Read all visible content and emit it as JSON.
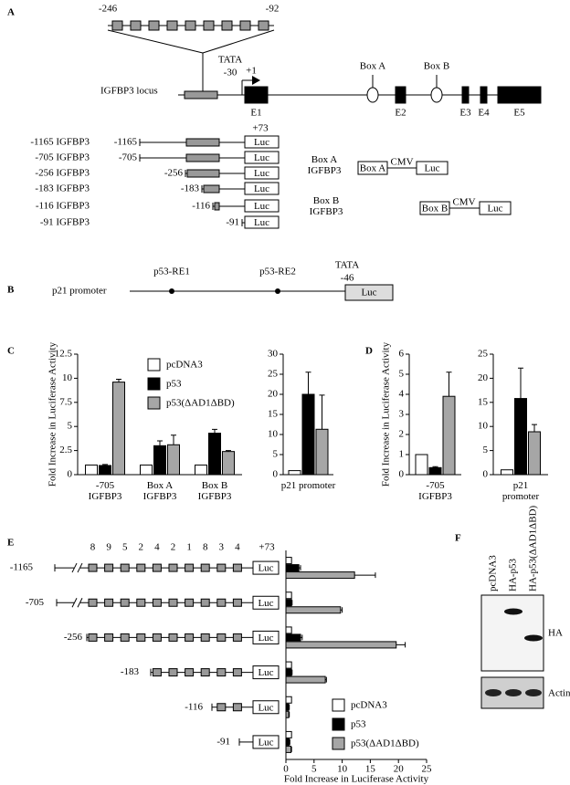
{
  "panel_labels": [
    "A",
    "B",
    "C",
    "D",
    "E",
    "F"
  ],
  "luc": "Luc",
  "igfbp3_diagram": {
    "inset_start": "-246",
    "inset_end": "-92",
    "tata": "TATA",
    "tata_position": "-30",
    "tss": "+1",
    "locus_label": "IGFBP3 locus",
    "box_a": "Box A",
    "box_b": "Box B",
    "exons": [
      "E1",
      "E2",
      "E3",
      "E4",
      "E5"
    ],
    "end_position": "+73",
    "constructs": [
      {
        "name": "-1165 IGFBP3",
        "start": "-1165"
      },
      {
        "name": "-705 IGFBP3",
        "start": "-705"
      },
      {
        "name": "-256 IGFBP3",
        "start": "-256"
      },
      {
        "name": "-183 IGFBP3",
        "start": "-183"
      },
      {
        "name": "-116 IGFBP3",
        "start": "-116"
      },
      {
        "name": "-91 IGFBP3",
        "start": "-91"
      }
    ],
    "box_constructs": [
      {
        "name": "Box A\nIGFBP3",
        "element": "Box A",
        "promoter": "CMV"
      },
      {
        "name": "Box B\nIGFBP3",
        "element": "Box B",
        "promoter": "CMV"
      }
    ]
  },
  "p21_diagram": {
    "label": "p21 promoter",
    "elements": [
      "p53-RE1",
      "p53-RE2"
    ],
    "tata": "TATA",
    "tata_position": "-46"
  },
  "e_diagram": {
    "site_numbers": [
      "8",
      "9",
      "5",
      "2",
      "4",
      "2",
      "1",
      "8",
      "3",
      "4"
    ]
  },
  "chart_data": [
    {
      "type": "bar",
      "ylabel": "Fold Increase in Luciferase Activity",
      "categories": [
        "-705\nIGFBP3",
        "Box A\nIGFBP3",
        "Box B\nIGFBP3"
      ],
      "series": [
        {
          "name": "pcDNA3",
          "color": "#ffffff",
          "values": [
            1,
            1,
            1
          ]
        },
        {
          "name": "p53",
          "color": "#000000",
          "values": [
            0.95,
            3,
            4.3
          ],
          "errors": [
            0.1,
            0.5,
            0.4
          ]
        },
        {
          "name": "p53(ΔAD1ΔBD)",
          "color": "#a6a6a6",
          "values": [
            9.6,
            3.1,
            2.4
          ],
          "errors": [
            0.3,
            1,
            0.1
          ]
        }
      ],
      "ylim": [
        0,
        12.5
      ],
      "yticks": [
        0,
        2.5,
        5,
        7.5,
        10,
        12.5
      ],
      "legend": "upper right"
    },
    {
      "type": "bar",
      "categories": [
        "p21 promoter"
      ],
      "series": [
        {
          "color": "#ffffff",
          "values": [
            1
          ]
        },
        {
          "color": "#000000",
          "values": [
            20
          ],
          "errors": [
            5.5
          ]
        },
        {
          "color": "#a6a6a6",
          "values": [
            11.3
          ],
          "errors": [
            8.5
          ]
        }
      ],
      "ylim": [
        0,
        30
      ],
      "yticks": [
        0,
        5,
        10,
        15,
        20,
        25,
        30
      ]
    },
    {
      "type": "bar",
      "ylabel": "Fold Increase in Luciferase Activity",
      "categories": [
        "-705\nIGFBP3"
      ],
      "series": [
        {
          "color": "#ffffff",
          "values": [
            1
          ]
        },
        {
          "color": "#000000",
          "values": [
            0.35
          ],
          "errors": [
            0.05
          ]
        },
        {
          "color": "#a6a6a6",
          "values": [
            3.9
          ],
          "errors": [
            1.2
          ]
        }
      ],
      "ylim": [
        0,
        6
      ],
      "yticks": [
        0,
        1,
        2,
        3,
        4,
        5,
        6
      ]
    },
    {
      "type": "bar",
      "categories": [
        "p21 promoter"
      ],
      "series": [
        {
          "color": "#ffffff",
          "values": [
            1
          ]
        },
        {
          "color": "#000000",
          "values": [
            15.8
          ],
          "errors": [
            6.3
          ]
        },
        {
          "color": "#a6a6a6",
          "values": [
            8.9
          ],
          "errors": [
            1.5
          ]
        }
      ],
      "ylim": [
        0,
        25
      ],
      "yticks": [
        0,
        5,
        10,
        15,
        20,
        25
      ]
    },
    {
      "type": "hbar",
      "xlabel": "Fold Increase in Luciferase Activity",
      "categories": [
        "-1165",
        "-705",
        "-256",
        "-183",
        "-116",
        "-91"
      ],
      "series": [
        {
          "name": "pcDNA3",
          "color": "#ffffff",
          "values": [
            1,
            1,
            1,
            1,
            1,
            1
          ]
        },
        {
          "name": "p53",
          "color": "#000000",
          "values": [
            2.3,
            1,
            2.6,
            1,
            0.5,
            0.6
          ],
          "errors": [
            0.3,
            0.1,
            0.3,
            0.1,
            0.1,
            0.1
          ]
        },
        {
          "name": "p53(ΔAD1ΔBD)",
          "color": "#a6a6a6",
          "values": [
            12.2,
            9.7,
            19.6,
            7,
            0.5,
            0.9
          ],
          "errors": [
            3.7,
            0.3,
            1.6,
            0.2,
            0.1,
            0.1
          ]
        }
      ],
      "xlim": [
        0,
        25
      ],
      "xticks": [
        0,
        5,
        10,
        15,
        20,
        25
      ],
      "legend": "lower right"
    }
  ],
  "western_blot": {
    "lanes": [
      "pcDNA3",
      "HA-p53",
      "HA-p53(ΔAD1ΔBD)"
    ],
    "bands": [
      "HA",
      "Actin"
    ]
  }
}
